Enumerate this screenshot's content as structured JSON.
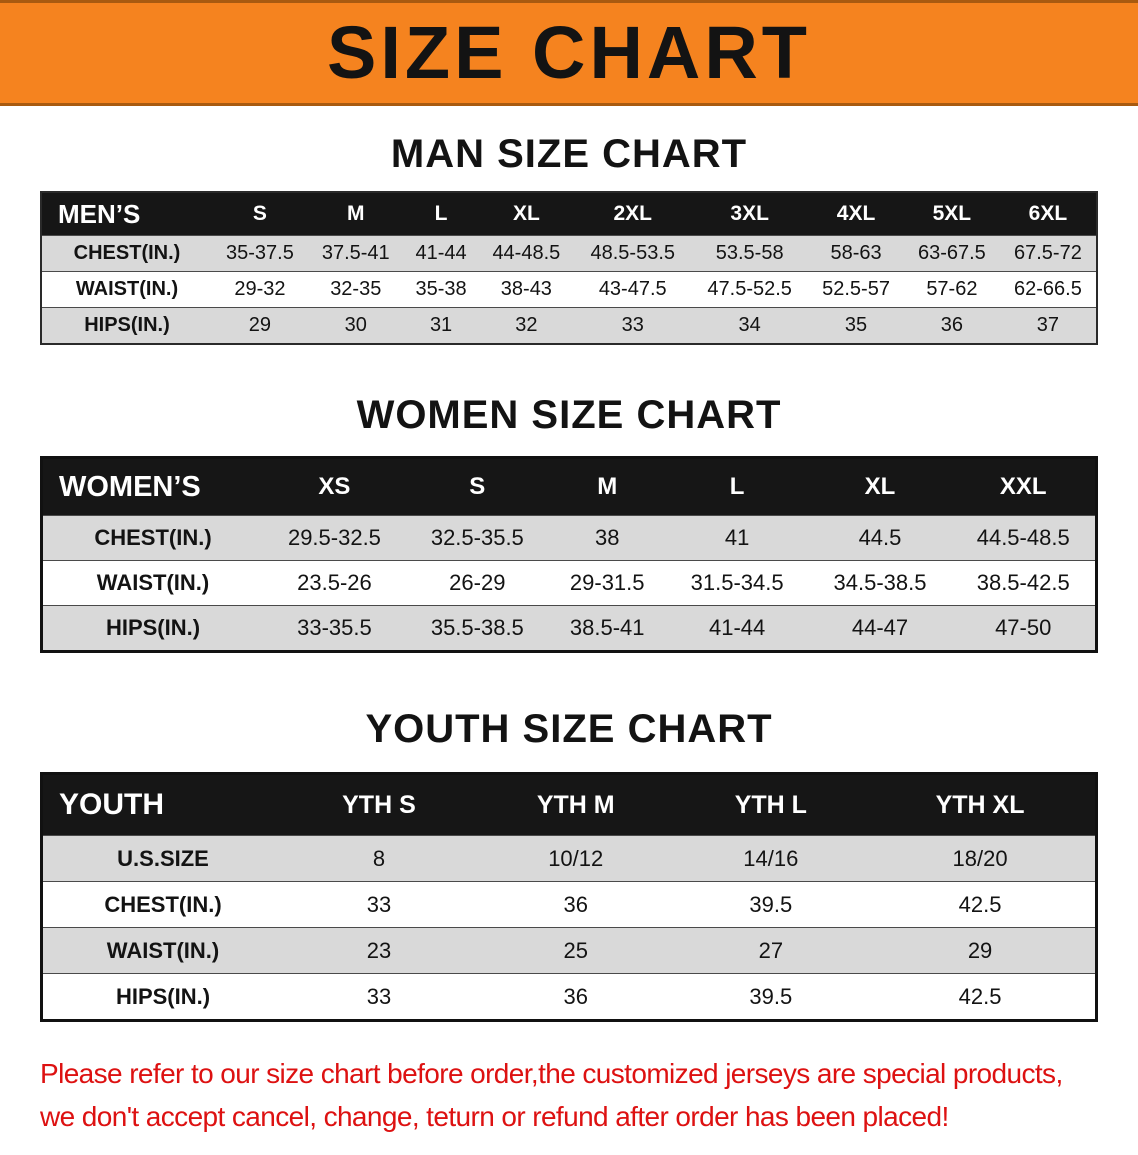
{
  "banner": {
    "title": "SIZE CHART",
    "bg_color": "#f5831f",
    "text_color": "#131313"
  },
  "sections": [
    {
      "heading": "MAN SIZE CHART",
      "table": {
        "group_label": "MEN’S",
        "columns": [
          "S",
          "M",
          "L",
          "XL",
          "2XL",
          "3XL",
          "4XL",
          "5XL",
          "6XL"
        ],
        "rows": [
          {
            "label": "CHEST(IN.)",
            "values": [
              "35-37.5",
              "37.5-41",
              "41-44",
              "44-48.5",
              "48.5-53.5",
              "53.5-58",
              "58-63",
              "63-67.5",
              "67.5-72"
            ]
          },
          {
            "label": "WAIST(IN.)",
            "values": [
              "29-32",
              "32-35",
              "35-38",
              "38-43",
              "43-47.5",
              "47.5-52.5",
              "52.5-57",
              "57-62",
              "62-66.5"
            ]
          },
          {
            "label": "HIPS(IN.)",
            "values": [
              "29",
              "30",
              "31",
              "32",
              "33",
              "34",
              "35",
              "36",
              "37"
            ]
          }
        ]
      }
    },
    {
      "heading": "WOMEN SIZE CHART",
      "table": {
        "group_label": "WOMEN’S",
        "columns": [
          "XS",
          "S",
          "M",
          "L",
          "XL",
          "XXL"
        ],
        "rows": [
          {
            "label": "CHEST(IN.)",
            "values": [
              "29.5-32.5",
              "32.5-35.5",
              "38",
              "41",
              "44.5",
              "44.5-48.5"
            ]
          },
          {
            "label": "WAIST(IN.)",
            "values": [
              "23.5-26",
              "26-29",
              "29-31.5",
              "31.5-34.5",
              "34.5-38.5",
              "38.5-42.5"
            ]
          },
          {
            "label": "HIPS(IN.)",
            "values": [
              "33-35.5",
              "35.5-38.5",
              "38.5-41",
              "41-44",
              "44-47",
              "47-50"
            ]
          }
        ]
      }
    },
    {
      "heading": "YOUTH SIZE CHART",
      "table": {
        "group_label": "YOUTH",
        "columns": [
          "YTH S",
          "YTH M",
          "YTH L",
          "YTH XL"
        ],
        "rows": [
          {
            "label": "U.S.SIZE",
            "values": [
              "8",
              "10/12",
              "14/16",
              "18/20"
            ]
          },
          {
            "label": "CHEST(IN.)",
            "values": [
              "33",
              "36",
              "39.5",
              "42.5"
            ]
          },
          {
            "label": "WAIST(IN.)",
            "values": [
              "23",
              "25",
              "27",
              "29"
            ]
          },
          {
            "label": "HIPS(IN.)",
            "values": [
              "33",
              "36",
              "39.5",
              "42.5"
            ]
          }
        ]
      }
    }
  ],
  "footer": {
    "text_color": "#dd1111",
    "line1": "Please refer to our size chart before order,the customized jerseys are special products,",
    "line2": "we don't accept cancel, change, teturn or refund after order has been placed!"
  }
}
